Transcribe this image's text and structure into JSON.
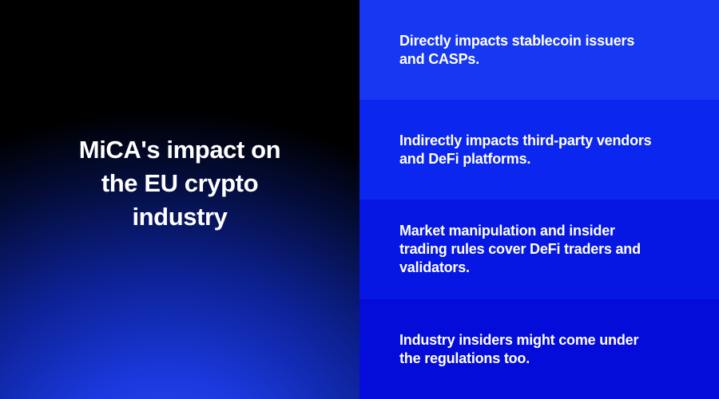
{
  "left": {
    "title": "MiCA's impact on the EU crypto industry",
    "title_lines": [
      "MiCA's impact on",
      "the EU crypto",
      "industry"
    ],
    "text_color": "#ffffff",
    "background_base_color": "#000000",
    "background_glow_color": "#2c4cf5"
  },
  "right": {
    "text_color": "#ffffff",
    "rows": [
      {
        "text": "Directly impacts stablecoin issuers and CASPs.",
        "lines": [
          "Directly impacts stablecoin issuers",
          "and CASPs."
        ],
        "bg": "#1738f2"
      },
      {
        "text": "Indirectly impacts third-party vendors and DeFi platforms.",
        "lines": [
          "Indirectly impacts third-party vendors",
          "and DeFi platforms."
        ],
        "bg": "#0b26ee"
      },
      {
        "text": "Market manipulation and insider trading rules cover DeFi traders and validators.",
        "lines": [
          "Market manipulation and insider",
          "trading rules cover DeFi traders and",
          "validators."
        ],
        "bg": "#0617e4"
      },
      {
        "text": "Industry insiders might come under the regulations too.",
        "lines": [
          "Industry insiders might come under",
          "the regulations too."
        ],
        "bg": "#040cd9"
      }
    ]
  }
}
